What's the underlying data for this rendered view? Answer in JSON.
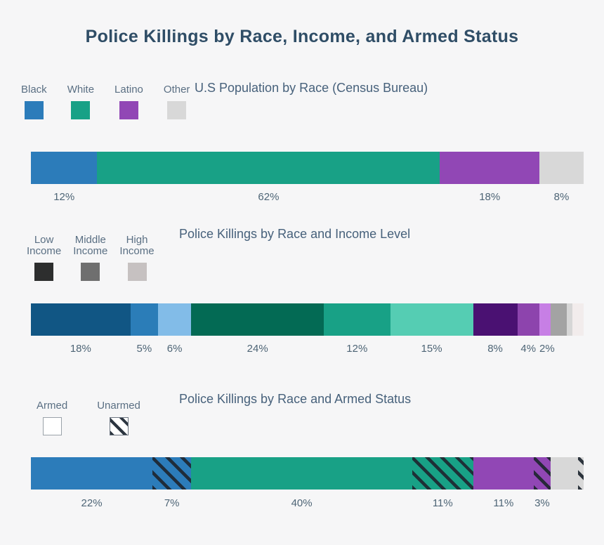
{
  "page": {
    "title": "Police Killings by Race, Income, and Armed Status",
    "background_color": "#f6f6f7",
    "title_color": "#2f4d66",
    "section_title_color": "#47617b",
    "label_color": "#4e6576",
    "hatch_line_color": "#2c3540"
  },
  "chart_data": [
    {
      "type": "bar",
      "subtype": "horizontal-stacked-percentage",
      "title": "U.S Population by Race (Census Bureau)",
      "legend_position": "top-left",
      "legend": [
        {
          "label": "Black",
          "color": "#2c7cba"
        },
        {
          "label": "White",
          "color": "#18a186"
        },
        {
          "label": "Latino",
          "color": "#9147b5"
        },
        {
          "label": "Other",
          "color": "#d8d8d8"
        }
      ],
      "segments": [
        {
          "category": "Black",
          "label": "12%",
          "value": 12,
          "color": "#2c7cba"
        },
        {
          "category": "White",
          "label": "62%",
          "value": 62,
          "color": "#18a186"
        },
        {
          "category": "Latino",
          "label": "18%",
          "value": 18,
          "color": "#9147b5"
        },
        {
          "category": "Other",
          "label": "8%",
          "value": 8,
          "color": "#d8d8d8"
        }
      ]
    },
    {
      "type": "bar",
      "subtype": "horizontal-stacked-percentage",
      "title": "Police Killings by Race and Income Level",
      "legend_position": "top-left",
      "legend": [
        {
          "label": "Low\nIncome",
          "color": "#2d2e2e"
        },
        {
          "label": "Middle\nIncome",
          "color": "#6f6f6f"
        },
        {
          "label": "High\nIncome",
          "color": "#c6c1c1"
        }
      ],
      "segments": [
        {
          "category": "Black low income",
          "label": "18%",
          "value": 18,
          "color": "#115684"
        },
        {
          "category": "Black middle income",
          "label": "5%",
          "value": 5,
          "color": "#2b7db8"
        },
        {
          "category": "Black high income",
          "label": "6%",
          "value": 6,
          "color": "#82bce8"
        },
        {
          "category": "White low income",
          "label": "24%",
          "value": 24,
          "color": "#036a54"
        },
        {
          "category": "White middle income",
          "label": "12%",
          "value": 12,
          "color": "#18a186"
        },
        {
          "category": "White high income",
          "label": "15%",
          "value": 15,
          "color": "#55cdb3"
        },
        {
          "category": "Latino low income",
          "label": "8%",
          "value": 8,
          "color": "#4a1172"
        },
        {
          "category": "Latino middle income",
          "label": "4%",
          "value": 4,
          "color": "#8d44ad"
        },
        {
          "category": "Latino high income",
          "label": "2%",
          "value": 2,
          "color": "#c77fe5"
        },
        {
          "category": "Other low income",
          "label": "",
          "value": 3,
          "color": "#a3a3a3"
        },
        {
          "category": "Other middle income",
          "label": "",
          "value": 1,
          "color": "#d6d6d6"
        },
        {
          "category": "Other high income",
          "label": "",
          "value": 2,
          "color": "#f2ecec"
        }
      ]
    },
    {
      "type": "bar",
      "subtype": "horizontal-stacked-percentage",
      "title": "Police Killings by Race and Armed Status",
      "legend_position": "top-left",
      "legend": [
        {
          "label": "Armed",
          "color": "#ffffff",
          "border": true
        },
        {
          "label": "Unarmed",
          "color": "#ffffff",
          "border": true,
          "hatch": true
        }
      ],
      "segments": [
        {
          "category": "Black armed",
          "label": "22%",
          "value": 22,
          "color": "#2c7cba"
        },
        {
          "category": "Black unarmed",
          "label": "7%",
          "value": 7,
          "color": "#2c7cba",
          "hatch": true
        },
        {
          "category": "White armed",
          "label": "40%",
          "value": 40,
          "color": "#18a186"
        },
        {
          "category": "White unarmed",
          "label": "11%",
          "value": 11,
          "color": "#18a186",
          "hatch": true
        },
        {
          "category": "Latino armed",
          "label": "11%",
          "value": 11,
          "color": "#9147b5"
        },
        {
          "category": "Latino unarmed",
          "label": "3%",
          "value": 3,
          "color": "#9147b5",
          "hatch": true
        },
        {
          "category": "Other armed",
          "label": "",
          "value": 5,
          "color": "#d8d8d8"
        },
        {
          "category": "Other unarmed",
          "label": "",
          "value": 1,
          "color": "#d8d8d8",
          "hatch": true
        }
      ]
    }
  ]
}
